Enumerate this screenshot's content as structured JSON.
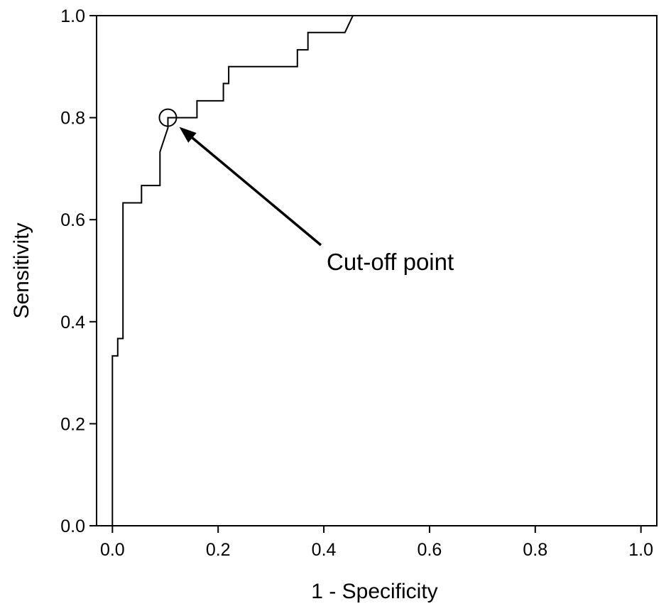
{
  "chart_data": {
    "type": "line",
    "title": "",
    "xlabel": "1 - Specificity",
    "ylabel": "Sensitivity",
    "xlim": [
      -0.03,
      1.03
    ],
    "ylim": [
      0.0,
      1.0
    ],
    "x_ticks": [
      0.0,
      0.2,
      0.4,
      0.6,
      0.8,
      1.0
    ],
    "x_tick_labels": [
      "0.0",
      "0.2",
      "0.4",
      "0.6",
      "0.8",
      "1.0"
    ],
    "y_ticks": [
      0.0,
      0.2,
      0.4,
      0.6,
      0.8,
      1.0
    ],
    "y_tick_labels": [
      "0.0",
      "0.2",
      "0.4",
      "0.6",
      "0.8",
      "1.0"
    ],
    "grid": false,
    "legend": "none",
    "series": [
      {
        "color": "#000000",
        "x": [
          0.0,
          0.0,
          0.01,
          0.01,
          0.02,
          0.02,
          0.025,
          0.025,
          0.055,
          0.055,
          0.09,
          0.09,
          0.105,
          0.105,
          0.16,
          0.16,
          0.21,
          0.21,
          0.22,
          0.22,
          0.23,
          0.23,
          0.35,
          0.35,
          0.37,
          0.37,
          0.44,
          0.455,
          1.0
        ],
        "y": [
          0.0,
          0.333,
          0.333,
          0.367,
          0.367,
          0.633,
          0.633,
          0.633,
          0.633,
          0.667,
          0.667,
          0.733,
          0.78,
          0.8,
          0.8,
          0.833,
          0.833,
          0.867,
          0.867,
          0.9,
          0.9,
          0.9,
          0.9,
          0.933,
          0.933,
          0.967,
          0.967,
          1.0,
          1.0
        ]
      }
    ],
    "annotations": [
      {
        "text": "Cut-off point",
        "point": [
          0.105,
          0.8
        ]
      }
    ]
  }
}
